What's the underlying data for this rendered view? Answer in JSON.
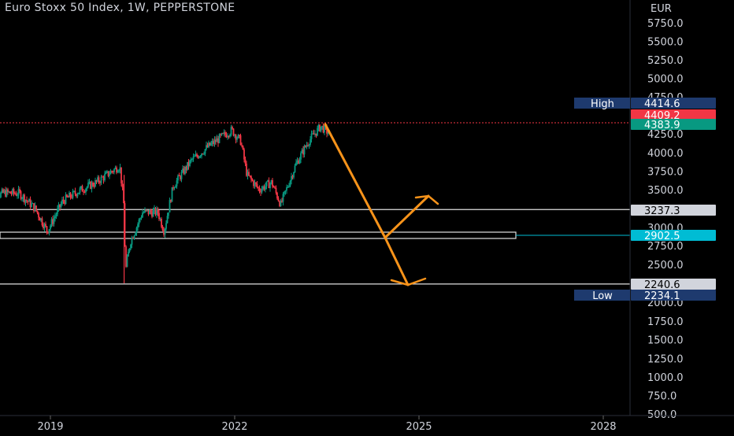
{
  "title": "Euro Stoxx 50 Index, 1W, PEPPERSTONE",
  "chart_data": {
    "type": "candlestick",
    "title": "Euro Stoxx 50 Index, 1W, PEPPERSTONE",
    "currency": "EUR",
    "y_ticks": [
      5750,
      5500,
      5250,
      5000,
      4750,
      4250,
      4000,
      3750,
      3500,
      3000,
      2750,
      2500,
      2000,
      1750,
      1500,
      1250,
      1000,
      750,
      500
    ],
    "y_tick_labels": [
      "5750.0",
      "5500.0",
      "5250.0",
      "5000.0",
      "4750.0",
      "4250.0",
      "4000.0",
      "3750.0",
      "3500.0",
      "3000.0",
      "2750.0",
      "2500.0",
      "2000.0",
      "1750.0",
      "1500.0",
      "1250.0",
      "1000.0",
      "750.0",
      "500.0"
    ],
    "x_ticks": [
      2019,
      2022,
      2025,
      2028
    ],
    "x_tick_labels": [
      "2019",
      "2022",
      "2025",
      "2028"
    ],
    "price_series": [
      [
        2018.0,
        3380
      ],
      [
        2018.25,
        3460
      ],
      [
        2018.5,
        3450
      ],
      [
        2018.75,
        3250
      ],
      [
        2018.95,
        2950
      ],
      [
        2019.2,
        3350
      ],
      [
        2019.5,
        3500
      ],
      [
        2019.75,
        3600
      ],
      [
        2020.0,
        3750
      ],
      [
        2020.13,
        3820
      ],
      [
        2020.2,
        3250
      ],
      [
        2020.22,
        2400
      ],
      [
        2020.3,
        2800
      ],
      [
        2020.5,
        3200
      ],
      [
        2020.75,
        3200
      ],
      [
        2020.85,
        2950
      ],
      [
        2021.0,
        3550
      ],
      [
        2021.3,
        3900
      ],
      [
        2021.6,
        4100
      ],
      [
        2021.95,
        4300
      ],
      [
        2022.1,
        4150
      ],
      [
        2022.2,
        3700
      ],
      [
        2022.4,
        3500
      ],
      [
        2022.6,
        3600
      ],
      [
        2022.75,
        3300
      ],
      [
        2023.0,
        3850
      ],
      [
        2023.2,
        4150
      ],
      [
        2023.4,
        4350
      ],
      [
        2023.55,
        4250
      ]
    ],
    "levels": [
      {
        "label": "High",
        "value": "4414.6",
        "color": "#1e3a6e"
      },
      {
        "label": "",
        "value": "4409.2",
        "color": "#f23645"
      },
      {
        "label": "",
        "value": "4383.9",
        "color": "#089981"
      },
      {
        "label": "",
        "value": "3237.3",
        "color": "#d1d4dc"
      },
      {
        "label": "",
        "value": "2902.5",
        "color": "#00bcd4"
      },
      {
        "label": "",
        "value": "2240.6",
        "color": "#d1d4dc"
      },
      {
        "label": "Low",
        "value": "2234.1",
        "color": "#1e3a6e"
      }
    ],
    "projection_path": [
      [
        2023.55,
        4390
      ],
      [
        2024.45,
        2760
      ],
      [
        2025.05,
        3460
      ]
    ],
    "projection_path_2": [
      [
        2024.45,
        2760
      ],
      [
        2024.95,
        2280
      ],
      [
        2025.05,
        2310
      ]
    ],
    "colors": {
      "up": "#089981",
      "down": "#f23645",
      "projection": "#f7931a"
    }
  }
}
